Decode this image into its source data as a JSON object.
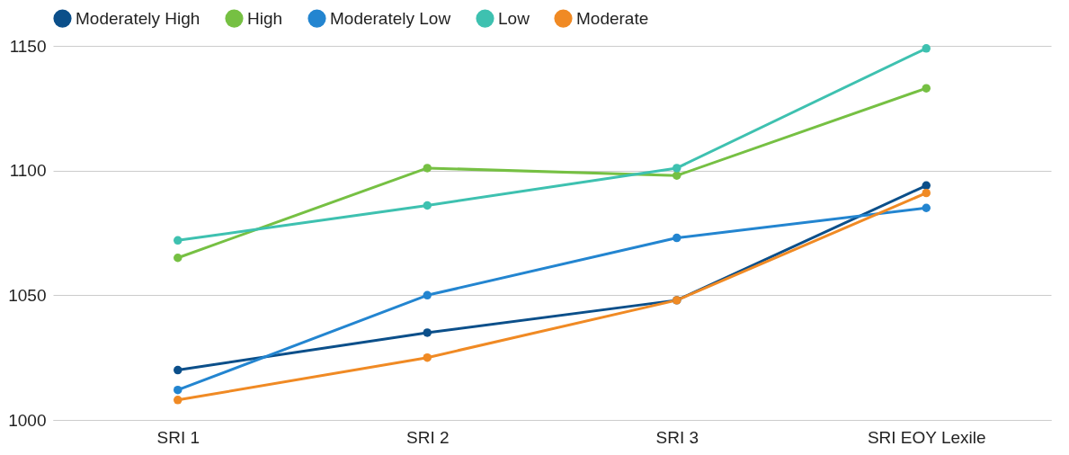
{
  "chart_data": {
    "type": "line",
    "categories": [
      "SRI 1",
      "SRI 2",
      "SRI 3",
      "SRI EOY Lexile"
    ],
    "series": [
      {
        "name": "Moderately High",
        "color": "#0b4f8a",
        "values": [
          1020,
          1035,
          1048,
          1094
        ]
      },
      {
        "name": "High",
        "color": "#76c043",
        "values": [
          1065,
          1101,
          1098,
          1133
        ]
      },
      {
        "name": "Moderately Low",
        "color": "#2385d0",
        "values": [
          1012,
          1050,
          1073,
          1085
        ]
      },
      {
        "name": "Low",
        "color": "#3ec1b0",
        "values": [
          1072,
          1086,
          1101,
          1149
        ]
      },
      {
        "name": "Moderate",
        "color": "#f08a24",
        "values": [
          1008,
          1025,
          1048,
          1091
        ]
      }
    ],
    "ylim": [
      1000,
      1150
    ],
    "yticks": [
      1000,
      1050,
      1100,
      1150
    ],
    "grid": "y",
    "legend": "top",
    "marker": "circle",
    "line_style": "solid"
  }
}
